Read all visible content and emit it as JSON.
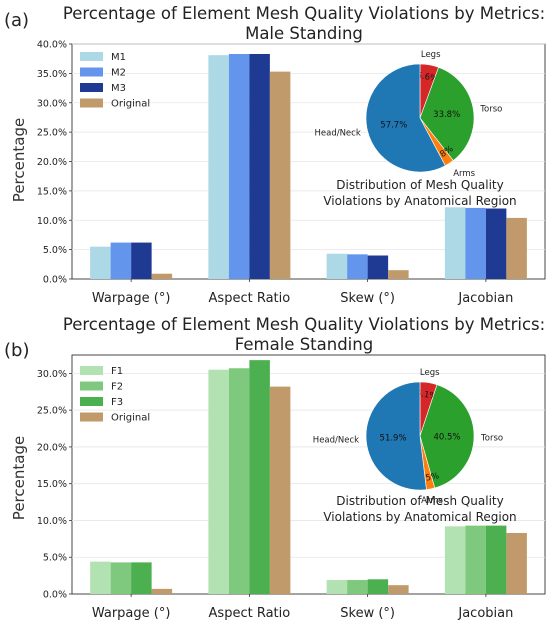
{
  "chart_data": [
    {
      "type": "bar",
      "panel_label": "(a)",
      "title_line1": "Percentage of Element Mesh Quality Violations by Metrics:",
      "title_line2": "Male Standing",
      "ylabel": "Percentage",
      "ylim": [
        0,
        40
      ],
      "yticks": [
        "0.0%",
        "5.0%",
        "10.0%",
        "15.0%",
        "20.0%",
        "25.0%",
        "30.0%",
        "35.0%",
        "40.0%"
      ],
      "categories": [
        "Warpage (°)",
        "Aspect Ratio",
        "Skew (°)",
        "Jacobian"
      ],
      "series": [
        {
          "name": "M1",
          "color": "#add8e6",
          "values": [
            5.5,
            38.1,
            4.3,
            12.2
          ]
        },
        {
          "name": "M2",
          "color": "#6495ed",
          "values": [
            6.2,
            38.3,
            4.2,
            12.1
          ]
        },
        {
          "name": "M3",
          "color": "#1f3a93",
          "values": [
            6.2,
            38.3,
            4.0,
            12.0
          ]
        },
        {
          "name": "Original",
          "color": "#c19a6b",
          "values": [
            0.9,
            35.3,
            1.5,
            10.4
          ]
        }
      ],
      "legend_position": "top-left",
      "grid": true,
      "pie": {
        "caption_line1": "Distribution of Mesh Quality",
        "caption_line2": "Violations by Anatomical Region",
        "slices": [
          {
            "label": "Legs",
            "value": 5.6,
            "pct": "5.6%",
            "color": "#d62728"
          },
          {
            "label": "Torso",
            "value": 33.8,
            "pct": "33.8%",
            "color": "#2ca02c"
          },
          {
            "label": "Arms",
            "value": 2.8,
            "pct": "2.8%",
            "color": "#ff7f0e"
          },
          {
            "label": "Head/Neck",
            "value": 57.7,
            "pct": "57.7%",
            "color": "#1f77b4"
          }
        ]
      }
    },
    {
      "type": "bar",
      "panel_label": "(b)",
      "title_line1": "Percentage of Element Mesh Quality Violations by Metrics:",
      "title_line2": "Female Standing",
      "ylabel": "Percentage",
      "ylim": [
        0,
        32.5
      ],
      "yticks": [
        "0.0%",
        "5.0%",
        "10.0%",
        "15.0%",
        "20.0%",
        "25.0%",
        "30.0%"
      ],
      "categories": [
        "Warpage (°)",
        "Aspect Ratio",
        "Skew (°)",
        "Jacobian"
      ],
      "series": [
        {
          "name": "F1",
          "color": "#b2e2b2",
          "values": [
            4.4,
            30.5,
            1.9,
            9.2
          ]
        },
        {
          "name": "F2",
          "color": "#7fc97f",
          "values": [
            4.3,
            30.7,
            1.9,
            9.3
          ]
        },
        {
          "name": "F3",
          "color": "#4caf50",
          "values": [
            4.3,
            31.8,
            2.0,
            9.3
          ]
        },
        {
          "name": "Original",
          "color": "#c19a6b",
          "values": [
            0.7,
            28.2,
            1.2,
            8.3
          ]
        }
      ],
      "legend_position": "top-left",
      "grid": true,
      "pie": {
        "caption_line1": "Distribution of Mesh Quality",
        "caption_line2": "Violations by Anatomical Region",
        "slices": [
          {
            "label": "Legs",
            "value": 5.1,
            "pct": "5.1%",
            "color": "#d62728"
          },
          {
            "label": "Torso",
            "value": 40.5,
            "pct": "40.5%",
            "color": "#2ca02c"
          },
          {
            "label": "Arms",
            "value": 2.5,
            "pct": "2.5%",
            "color": "#ff7f0e"
          },
          {
            "label": "Head/Neck",
            "value": 51.9,
            "pct": "51.9%",
            "color": "#1f77b4"
          }
        ]
      }
    }
  ]
}
